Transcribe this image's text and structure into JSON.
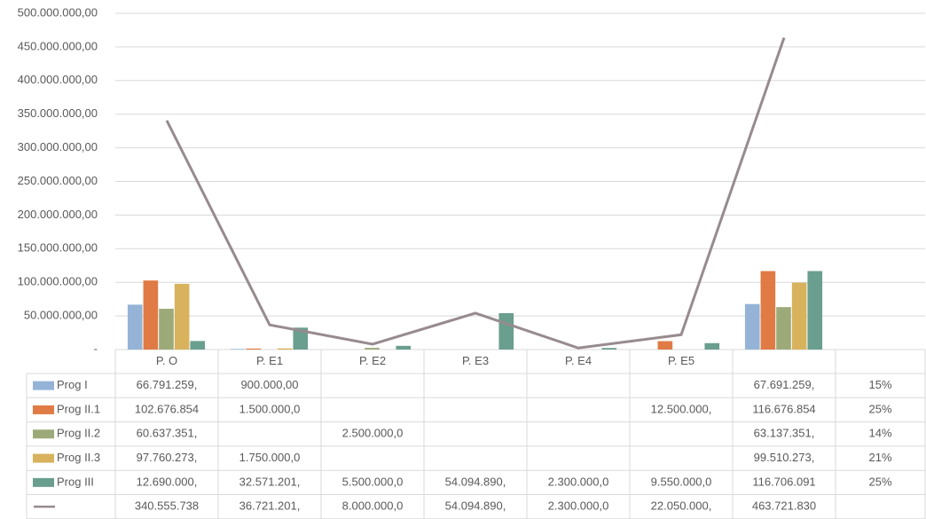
{
  "chart_data": {
    "type": "bar",
    "categories": [
      "P. O",
      "P. E1",
      "P. E2",
      "P. E3",
      "P. E4",
      "P. E5",
      null,
      null
    ],
    "ylim": [
      0,
      500000000
    ],
    "yticks": [
      {
        "value": 0,
        "label": "-"
      },
      {
        "value": 50000000,
        "label": "50.000.000,00"
      },
      {
        "value": 100000000,
        "label": "100.000.000,00"
      },
      {
        "value": 150000000,
        "label": "150.000.000,00"
      },
      {
        "value": 200000000,
        "label": "200.000.000,00"
      },
      {
        "value": 250000000,
        "label": "250.000.000,00"
      },
      {
        "value": 300000000,
        "label": "300.000.000,00"
      },
      {
        "value": 350000000,
        "label": "350.000.000,00"
      },
      {
        "value": 400000000,
        "label": "400.000.000,00"
      },
      {
        "value": 450000000,
        "label": "450.000.000,00"
      },
      {
        "value": 500000000,
        "label": "500.000.000,00"
      }
    ],
    "grid": true,
    "series": [
      {
        "name": "Prog I",
        "color": "#95b3d7",
        "values": [
          66791259,
          900000,
          null,
          null,
          null,
          null,
          67691259,
          null
        ],
        "value_labels": [
          "66.791.259,",
          "900.000,00",
          null,
          null,
          null,
          null,
          "67.691.259,",
          null
        ],
        "share": {
          "value": 15,
          "label": "15%"
        }
      },
      {
        "name": "Prog II.1",
        "color": "#e07b45",
        "values": [
          102676854,
          1500000,
          null,
          null,
          null,
          12500000,
          116676854,
          null
        ],
        "value_labels": [
          "102.676.854",
          "1.500.000,0",
          null,
          null,
          null,
          "12.500.000,",
          "116.676.854",
          null
        ],
        "share": {
          "value": 25,
          "label": "25%"
        }
      },
      {
        "name": "Prog II.2",
        "color": "#9caa7a",
        "values": [
          60637351,
          null,
          2500000,
          null,
          null,
          null,
          63137351,
          null
        ],
        "value_labels": [
          "60.637.351,",
          null,
          "2.500.000,0",
          null,
          null,
          null,
          "63.137.351,",
          null
        ],
        "share": {
          "value": 14,
          "label": "14%"
        }
      },
      {
        "name": "Prog II.3",
        "color": "#d9b25e",
        "values": [
          97760273,
          1750000,
          null,
          null,
          null,
          null,
          99510273,
          null
        ],
        "value_labels": [
          "97.760.273,",
          "1.750.000,0",
          null,
          null,
          null,
          null,
          "99.510.273,",
          null
        ],
        "share": {
          "value": 21,
          "label": "21%"
        }
      },
      {
        "name": "Prog III",
        "color": "#6a9e8f",
        "values": [
          12690000,
          32571201,
          5500000,
          54094890,
          2300000,
          9550000,
          116706091,
          null
        ],
        "value_labels": [
          "12.690.000,",
          "32.571.201,",
          "5.500.000,0",
          "54.094.890,",
          "2.300.000,0",
          "9.550.000,0",
          "116.706.091",
          null
        ],
        "share": {
          "value": 25,
          "label": "25%"
        }
      },
      {
        "type": "line",
        "color": "#978b8e",
        "values": [
          340555738,
          36721201,
          8000000,
          54094890,
          2300000,
          22050000,
          463721830,
          null
        ],
        "value_labels": [
          "340.555.738",
          "36.721.201,",
          "8.000.000,0",
          "54.094.890,",
          "2.300.000,0",
          "22.050.000,",
          "463.721.830",
          null
        ]
      }
    ]
  }
}
